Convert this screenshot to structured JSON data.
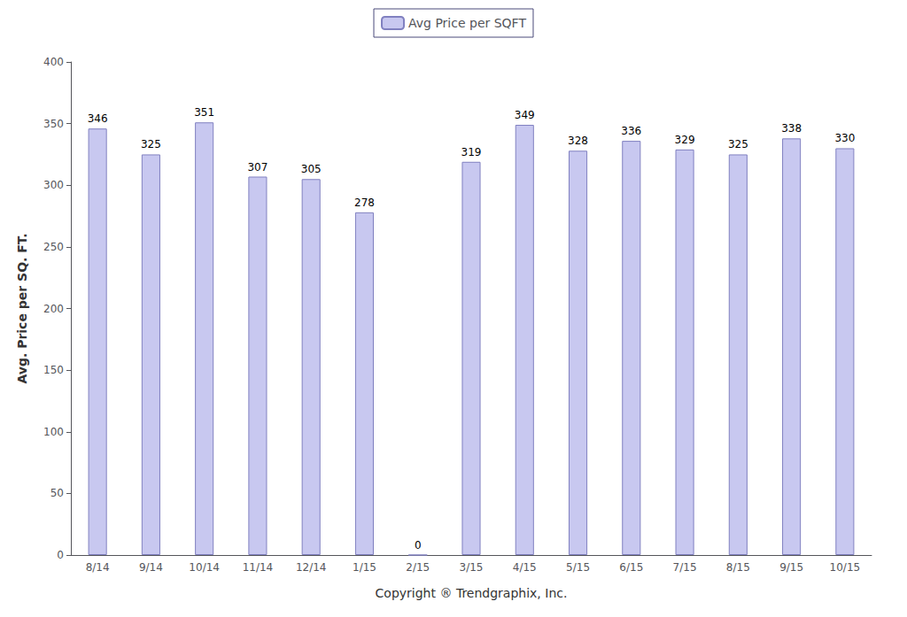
{
  "chart_data": {
    "type": "bar",
    "categories": [
      "8/14",
      "9/14",
      "10/14",
      "11/14",
      "12/14",
      "1/15",
      "2/15",
      "3/15",
      "4/15",
      "5/15",
      "6/15",
      "7/15",
      "8/15",
      "9/15",
      "10/15"
    ],
    "series": [
      {
        "name": "Avg Price per SQFT",
        "color": "#c8c8f0",
        "values": [
          346,
          325,
          351,
          307,
          305,
          278,
          0,
          319,
          349,
          328,
          336,
          329,
          325,
          338,
          330
        ]
      }
    ],
    "xlabel": "Copyright ® Trendgraphix, Inc.",
    "ylabel": "Avg. Price per SQ. FT.",
    "ylim": [
      0,
      400
    ],
    "yticks": [
      0,
      50,
      100,
      150,
      200,
      250,
      300,
      350,
      400
    ],
    "grid": false,
    "legend": "top",
    "data_labels": true
  }
}
